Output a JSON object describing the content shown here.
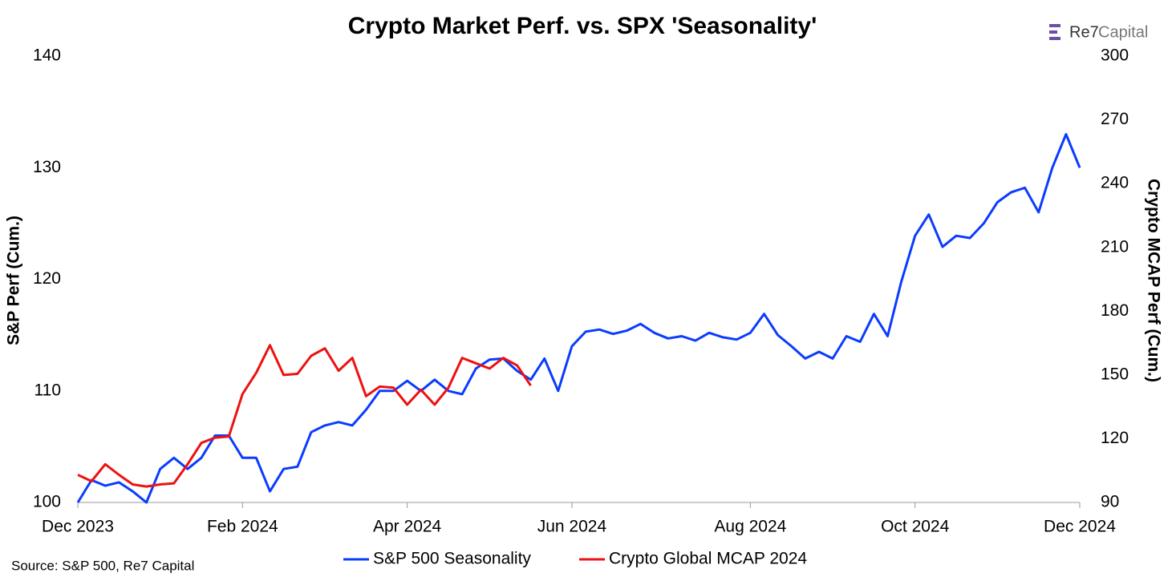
{
  "chart_data": {
    "type": "line",
    "title": "Crypto Market Perf. vs. SPX 'Seasonality'",
    "logo": [
      "Re7",
      "Capital"
    ],
    "source": "Source: S&P 500, Re7 Capital",
    "y_label": "S&P Perf (Cum.)",
    "y2_label": "Crypto MCAP Perf (Cum.)",
    "categories": [
      "Dec 2023",
      null,
      null,
      null,
      null,
      null,
      null,
      null,
      null,
      null,
      null,
      null,
      "Feb 2024",
      null,
      null,
      null,
      null,
      null,
      null,
      null,
      null,
      null,
      null,
      null,
      "Apr 2024",
      null,
      null,
      null,
      null,
      null,
      null,
      null,
      null,
      null,
      null,
      null,
      "Jun 2024",
      null,
      null,
      null,
      null,
      null,
      null,
      null,
      null,
      null,
      null,
      null,
      null,
      "Aug 2024",
      null,
      null,
      null,
      null,
      null,
      null,
      null,
      null,
      null,
      null,
      null,
      "Oct 2024",
      null,
      null,
      null,
      null,
      null,
      null,
      null,
      null,
      null,
      null,
      null,
      "Dec 2024"
    ],
    "ylim": [
      100,
      140
    ],
    "yticks": [
      100,
      110,
      120,
      130,
      140
    ],
    "y2lim": [
      90,
      300
    ],
    "y2ticks": [
      90,
      120,
      150,
      180,
      210,
      240,
      270,
      300
    ],
    "grid": false,
    "legend": "bottom",
    "series": [
      {
        "name": "S&P 500 Seasonality",
        "color": "#0a3cff",
        "values": [
          100,
          102,
          101.5,
          101.8,
          101,
          100,
          103,
          104,
          103,
          104,
          106,
          106,
          104,
          104,
          101,
          103,
          103.2,
          106.3,
          106.9,
          107.2,
          106.9,
          108.3,
          110,
          110,
          110.9,
          110,
          111,
          110,
          109.7,
          112,
          112.8,
          112.9,
          111.8,
          111,
          112.9,
          110,
          114,
          115.3,
          115.5,
          115.1,
          115.4,
          116,
          115.2,
          114.7,
          114.9,
          114.5,
          115.2,
          114.8,
          114.6,
          115.2,
          116.9,
          115,
          114,
          112.9,
          113.5,
          112.9,
          114.9,
          114.4,
          116.9,
          114.9,
          119.8,
          123.9,
          125.8,
          122.9,
          123.9,
          123.7,
          125,
          126.9,
          127.8,
          128.2,
          126,
          130,
          133,
          130
        ]
      },
      {
        "name": "Crypto Global MCAP 2024",
        "color": "#ee1111",
        "axis": "y2",
        "values": [
          103,
          100,
          108,
          103,
          98.5,
          97.5,
          98.5,
          99,
          108,
          118,
          120.5,
          121,
          141,
          151,
          164,
          150,
          150.5,
          159,
          162.5,
          152,
          158,
          140,
          144.5,
          144,
          136,
          143,
          136,
          144,
          158,
          155.5,
          153,
          158,
          154.5,
          145,
          null,
          null,
          null,
          null,
          null,
          null,
          null,
          null,
          null,
          null,
          null,
          null,
          null,
          null,
          null,
          null,
          null,
          null,
          null,
          null,
          null,
          null,
          null,
          null,
          null,
          null,
          null,
          null,
          null,
          null,
          null,
          null,
          null,
          null,
          null,
          null,
          null,
          null,
          null,
          null
        ]
      }
    ]
  }
}
